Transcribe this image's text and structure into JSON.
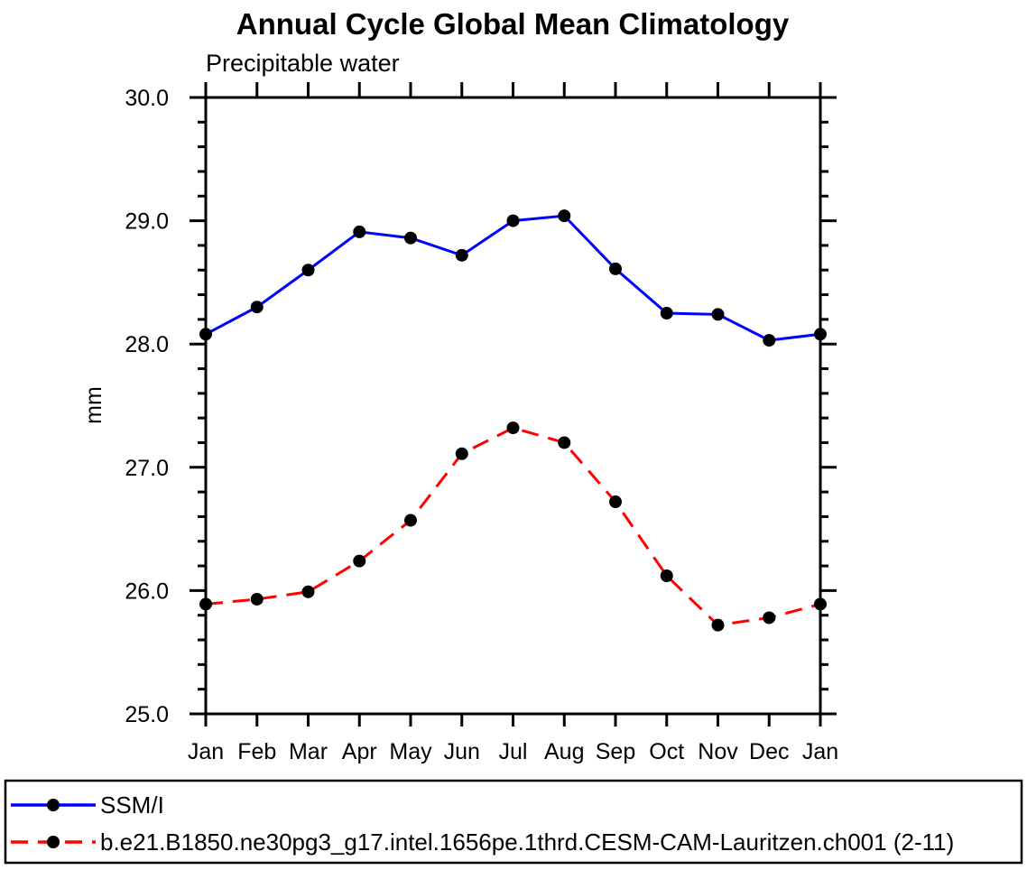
{
  "chart_data": {
    "type": "line",
    "title": "Annual Cycle Global Mean Climatology",
    "subtitle": "Precipitable water",
    "xlabel": "",
    "ylabel": "mm",
    "categories": [
      "Jan",
      "Feb",
      "Mar",
      "Apr",
      "May",
      "Jun",
      "Jul",
      "Aug",
      "Sep",
      "Oct",
      "Nov",
      "Dec",
      "Jan"
    ],
    "ylim": [
      25.0,
      30.0
    ],
    "ytick_major": 1.0,
    "ytick_minor": 0.2,
    "ytick_labels": [
      "30.0",
      "29.0",
      "28.0",
      "27.0",
      "26.0",
      "25.0"
    ],
    "grid": "off",
    "frame": "boxed",
    "legend_position": "bottom",
    "marker": {
      "shape": "circle",
      "color": "#000000"
    },
    "series": [
      {
        "name": "SSM/I",
        "color": "#0000ff",
        "style": "solid",
        "values": [
          28.08,
          28.3,
          28.6,
          28.91,
          28.86,
          28.72,
          29.0,
          29.04,
          28.61,
          28.25,
          28.24,
          28.03,
          28.08
        ]
      },
      {
        "name": "b.e21.B1850.ne30pg3_g17.intel.1656pe.1thrd.CESM-CAM-Lauritzen.ch001 (2-11)",
        "color": "#ff0000",
        "style": "dashed",
        "values": [
          25.89,
          25.93,
          25.99,
          26.24,
          26.57,
          27.11,
          27.32,
          27.2,
          26.72,
          26.12,
          25.72,
          25.78,
          25.89
        ]
      }
    ]
  },
  "colors": {
    "axis": "#000000",
    "background": "#ffffff",
    "series_blue": "#0000ff",
    "series_red": "#ff0000",
    "marker": "#000000"
  }
}
